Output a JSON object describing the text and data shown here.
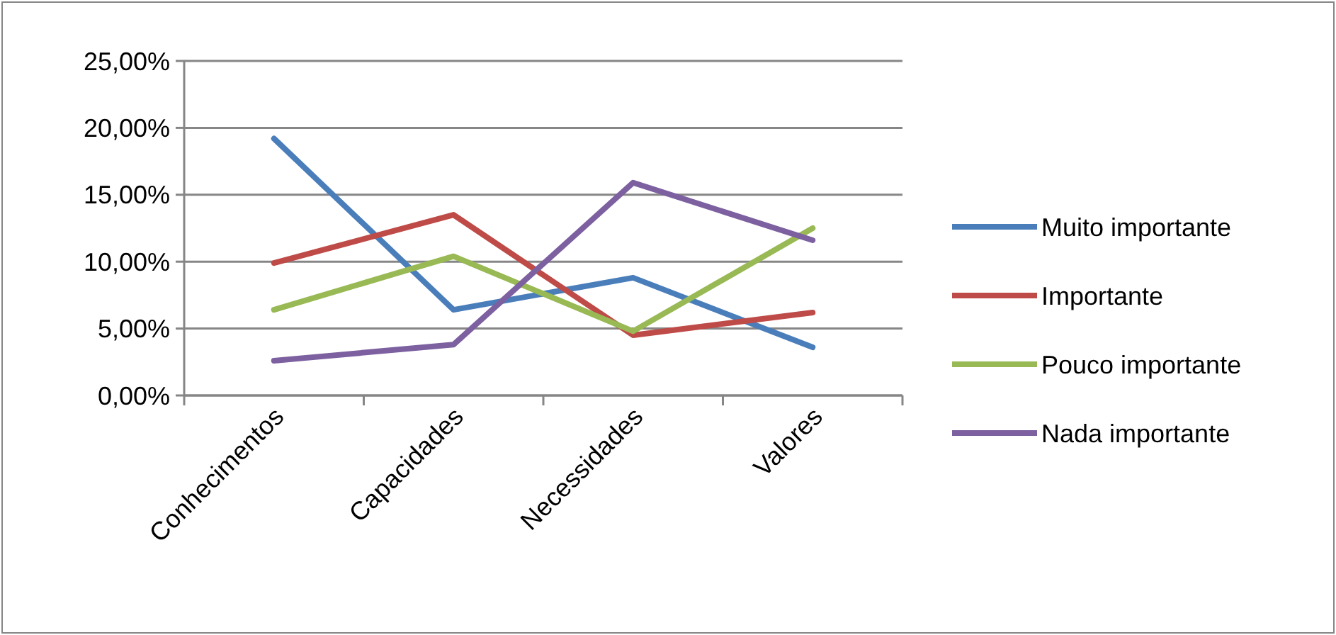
{
  "chart_data": {
    "type": "line",
    "categories": [
      "Conhecimentos",
      "Capacidades",
      "Necessidades",
      "Valores"
    ],
    "series": [
      {
        "name": "Muito importante",
        "color": "#4a7ebb",
        "values": [
          19.2,
          6.4,
          8.8,
          3.6
        ]
      },
      {
        "name": "Importante",
        "color": "#be4b48",
        "values": [
          9.9,
          13.5,
          4.5,
          6.2
        ]
      },
      {
        "name": "Pouco importante",
        "color": "#98b954",
        "values": [
          6.4,
          10.4,
          4.8,
          12.5
        ]
      },
      {
        "name": "Nada importante",
        "color": "#7d60a0",
        "values": [
          2.6,
          3.8,
          15.9,
          11.6
        ]
      }
    ],
    "ylim": [
      0,
      25
    ],
    "yticks": [
      {
        "value": 0,
        "label": "0,00%"
      },
      {
        "value": 5,
        "label": "5,00%"
      },
      {
        "value": 10,
        "label": "10,00%"
      },
      {
        "value": 15,
        "label": "15,00%"
      },
      {
        "value": 20,
        "label": "20,00%"
      },
      {
        "value": 25,
        "label": "25,00%"
      }
    ],
    "grid": "y",
    "legend": "right",
    "marker": "none",
    "line_style": "solid"
  }
}
